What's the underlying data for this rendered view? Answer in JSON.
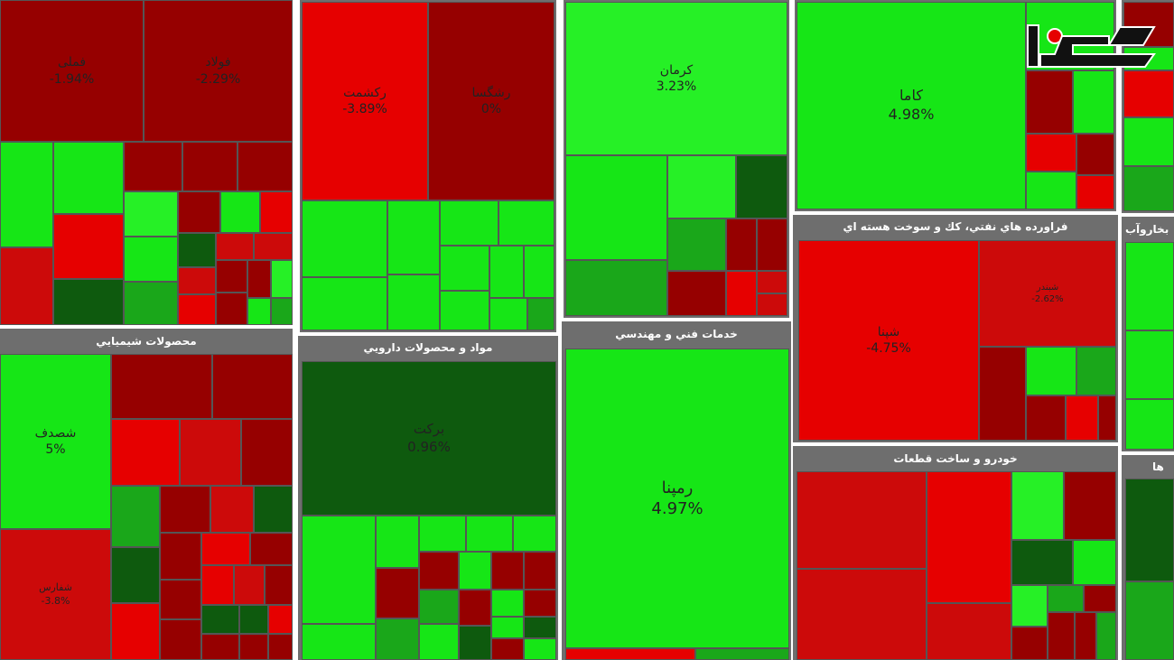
{
  "colors": {
    "green": "#16e616",
    "light_green": "#26f026",
    "mid_green": "#1aa71a",
    "dark_green": "#0e5a0e",
    "red": "#e60000",
    "mid_red": "#cc0a0a",
    "dark_red": "#960000",
    "header_bg": "#6e6e6e"
  },
  "logo_icon": "rokna-logo-icon",
  "sectors": [
    {
      "title": "",
      "tiles": [
        {
          "name": "فملی",
          "change": "-1.94%"
        },
        {
          "name": "فولاد",
          "change": "-2.29%"
        }
      ]
    },
    {
      "title": "",
      "tiles": [
        {
          "name": "رکشمت",
          "change": "-3.89%"
        },
        {
          "name": "رشگسا",
          "change": "0%"
        }
      ]
    },
    {
      "title": "",
      "tiles": [
        {
          "name": "کرمان",
          "change": "3.23%"
        }
      ]
    },
    {
      "title": "",
      "tiles": [
        {
          "name": "کاما",
          "change": "4.98%"
        }
      ]
    },
    {
      "title": "محصولات شيميايي",
      "tiles": [
        {
          "name": "شصدف",
          "change": "5%"
        },
        {
          "name": "شفارس",
          "change": "-3.8%"
        }
      ]
    },
    {
      "title": "مواد و محصولات دارويي",
      "tiles": [
        {
          "name": "برکت",
          "change": "0.96%"
        }
      ]
    },
    {
      "title": "خدمات فني و مهندسي",
      "tiles": [
        {
          "name": "رمپنا",
          "change": "4.97%"
        }
      ]
    },
    {
      "title": "فراورده هاي نفتي، كك و سوخت هسته اي",
      "tiles": [
        {
          "name": "شپنا",
          "change": "-4.75%"
        },
        {
          "name": "شبندر",
          "change": "-2.62%"
        }
      ]
    },
    {
      "title": "خودرو و ساخت قطعات",
      "tiles": []
    },
    {
      "title": "بخاروآب",
      "tiles": []
    },
    {
      "title": "ها",
      "tiles": []
    }
  ]
}
